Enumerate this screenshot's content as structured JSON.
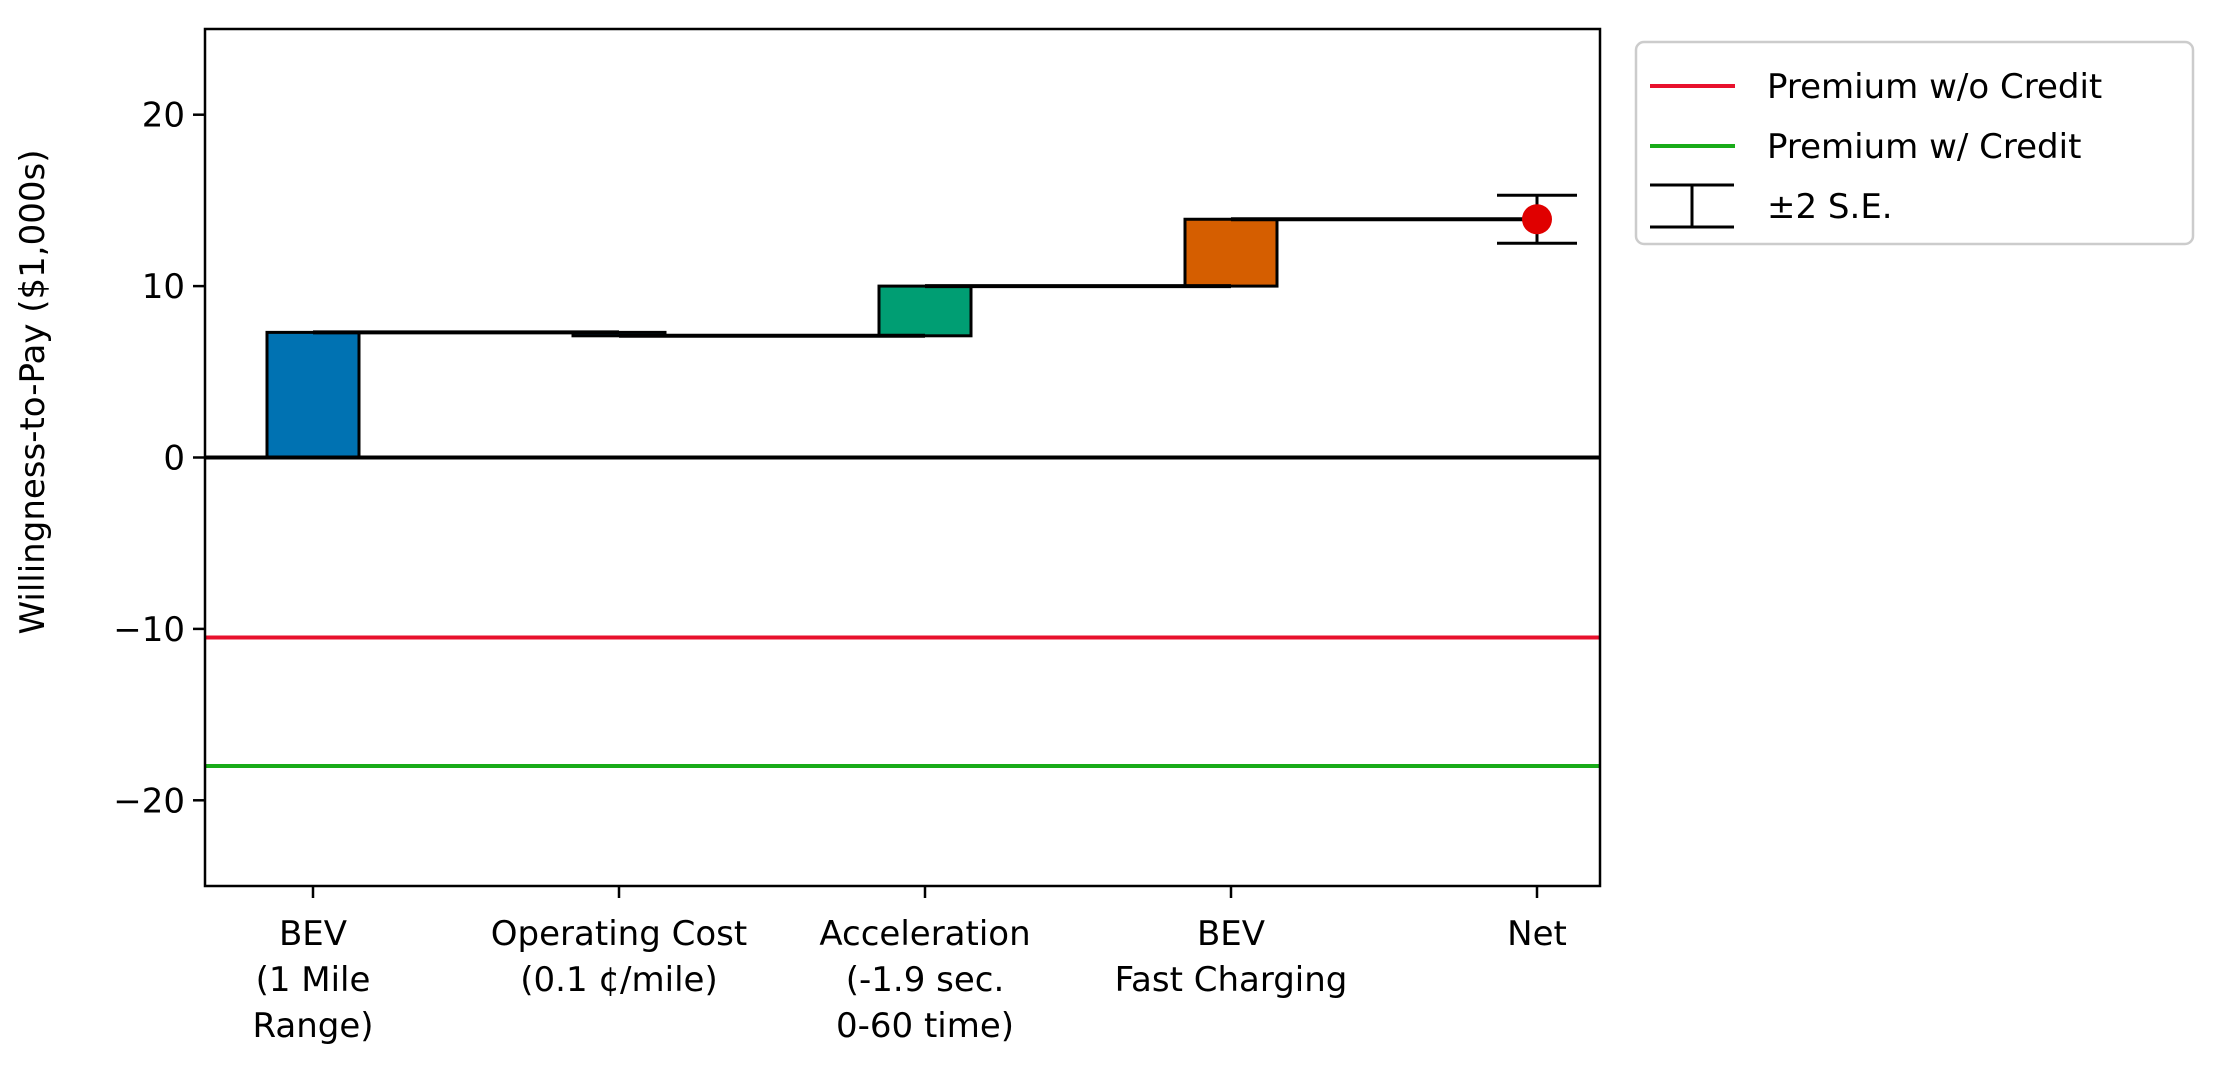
{
  "chart_data": {
    "type": "bar",
    "subtype": "waterfall",
    "ylabel": "Willingness-to-Pay ($1,000s)",
    "ylim": [
      -25,
      25
    ],
    "yticks": [
      20,
      10,
      0,
      -10,
      -20
    ],
    "ytick_labels": [
      "20",
      "10",
      "0",
      "−10",
      "−20"
    ],
    "categories": [
      {
        "lines": [
          "BEV",
          "(1 Mile",
          "Range)"
        ]
      },
      {
        "lines": [
          "Operating Cost",
          "(0.1 ¢/mile)"
        ]
      },
      {
        "lines": [
          "Acceleration",
          "(-1.9 sec.",
          "0-60 time)"
        ]
      },
      {
        "lines": [
          "BEV",
          "Fast Charging"
        ]
      },
      {
        "lines": [
          "Net"
        ]
      }
    ],
    "steps": [
      {
        "start": 0,
        "end": 7.3,
        "color": "#0072b2"
      },
      {
        "start": 7.3,
        "end": 7.1,
        "color": "#0072b2"
      },
      {
        "start": 7.1,
        "end": 10.0,
        "color": "#009e73"
      },
      {
        "start": 10.0,
        "end": 13.9,
        "color": "#d55e00"
      }
    ],
    "net": {
      "value": 13.9,
      "se2": 1.4,
      "color": "#e00000"
    },
    "reference_lines": [
      {
        "name": "Premium w/o Credit",
        "value": -10.5,
        "color": "#e8112d"
      },
      {
        "name": "Premium w/ Credit",
        "value": -18.0,
        "color": "#19ab19"
      }
    ],
    "legend": {
      "placement": "outside-right",
      "entries": [
        {
          "label": "Premium w/o Credit",
          "kind": "line",
          "color": "#e8112d"
        },
        {
          "label": "Premium w/ Credit",
          "kind": "line",
          "color": "#19ab19"
        },
        {
          "label": "±2 S.E.",
          "kind": "errorbar",
          "color": "#000000"
        }
      ]
    }
  }
}
